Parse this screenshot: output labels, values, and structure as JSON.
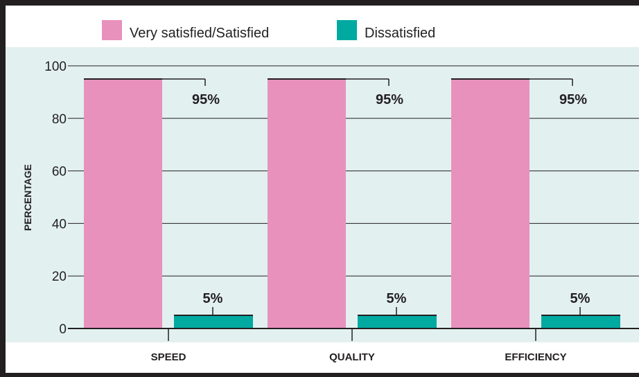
{
  "chart_data": {
    "type": "bar",
    "categories": [
      "SPEED",
      "QUALITY",
      "EFFICIENCY"
    ],
    "series": [
      {
        "name": "Very satisfied/Satisfied",
        "values": [
          95,
          95,
          95
        ],
        "color": "#e891bc"
      },
      {
        "name": "Dissatisfied",
        "values": [
          5,
          5,
          5
        ],
        "color": "#00aaa0"
      }
    ],
    "data_labels": [
      [
        "95%",
        "95%",
        "95%"
      ],
      [
        "5%",
        "5%",
        "5%"
      ]
    ],
    "ylabel": "PERCENTAGE",
    "xlabel": "",
    "ylim": [
      0,
      100
    ],
    "yticks": [
      "0",
      "20",
      "40",
      "60",
      "80",
      "100"
    ],
    "grid": true,
    "legend_position": "top",
    "plot_background": "#e2f0f0"
  }
}
